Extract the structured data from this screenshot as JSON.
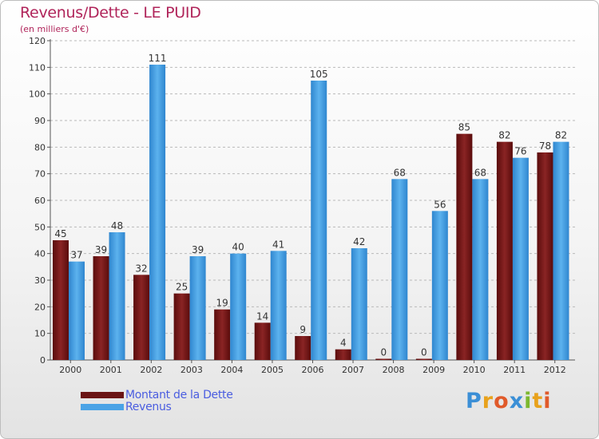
{
  "header": {
    "title": "Revenus/Dette - LE PUID",
    "subtitle": "(en milliers d'€)"
  },
  "legend": {
    "items": [
      {
        "label": "Montant de la Dette",
        "color": "#7a1a1a"
      },
      {
        "label": "Revenus",
        "color": "#4aa3e6"
      }
    ]
  },
  "logo": {
    "text": "Proxiti"
  },
  "chart_data": {
    "type": "bar",
    "categories": [
      "2000",
      "2001",
      "2002",
      "2003",
      "2004",
      "2005",
      "2006",
      "2007",
      "2008",
      "2009",
      "2010",
      "2011",
      "2012"
    ],
    "series": [
      {
        "name": "Montant de la Dette",
        "color": "#7a1a1a",
        "values": [
          45,
          39,
          32,
          25,
          19,
          14,
          9,
          4,
          0,
          0,
          85,
          82,
          78
        ]
      },
      {
        "name": "Revenus",
        "color": "#4aa3e6",
        "values": [
          37,
          48,
          111,
          39,
          40,
          41,
          105,
          42,
          68,
          56,
          68,
          76,
          82
        ]
      }
    ],
    "title": "Revenus/Dette - LE PUID",
    "ylabel": "(en milliers d'€)",
    "ylim": [
      0,
      120
    ],
    "yticks": [
      0,
      10,
      20,
      30,
      40,
      50,
      60,
      70,
      80,
      90,
      100,
      110,
      120
    ],
    "grid": true,
    "legend_position": "bottom-left"
  }
}
